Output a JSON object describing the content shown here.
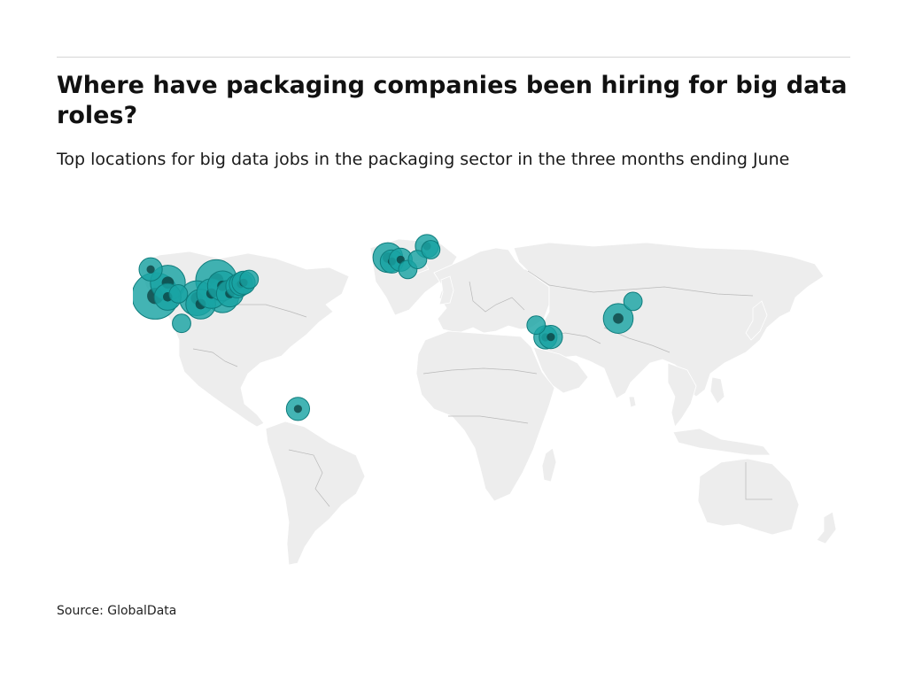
{
  "header": {
    "title": "Where have packaging companies been hiring for big data roles?",
    "subtitle": "Top locations for big data jobs in the packaging sector in the three months ending June"
  },
  "footer": {
    "source": "Source: GlobalData"
  },
  "colors": {
    "land": "#ededed",
    "border": "#b9b9b9",
    "bubble": "#1aa3a3",
    "bubble_stroke": "#0e7c7c",
    "bubble_overlap": "#0b3c3c"
  },
  "chart_data": {
    "type": "scatter",
    "map": "world",
    "series": [
      {
        "values": [
          {
            "lon": -120.5,
            "lat": 47.5,
            "size": 2
          },
          {
            "lon": -118.2,
            "lat": 34.0,
            "size": 12
          },
          {
            "lon": -111.9,
            "lat": 40.7,
            "size": 6
          },
          {
            "lon": -112.0,
            "lat": 33.5,
            "size": 3
          },
          {
            "lon": -106.6,
            "lat": 35.0,
            "size": 1
          },
          {
            "lon": -97.3,
            "lat": 32.8,
            "size": 6
          },
          {
            "lon": -95.4,
            "lat": 29.8,
            "size": 4
          },
          {
            "lon": -90.0,
            "lat": 35.2,
            "size": 4
          },
          {
            "lon": -87.6,
            "lat": 41.9,
            "size": 9
          },
          {
            "lon": -84.4,
            "lat": 33.7,
            "size": 5
          },
          {
            "lon": -84.5,
            "lat": 39.1,
            "size": 4
          },
          {
            "lon": -80.8,
            "lat": 35.2,
            "size": 3
          },
          {
            "lon": -77.0,
            "lat": 38.9,
            "size": 2
          },
          {
            "lon": -75.2,
            "lat": 40.0,
            "size": 2
          },
          {
            "lon": -73.9,
            "lat": 40.7,
            "size": 2
          },
          {
            "lon": -71.1,
            "lat": 42.4,
            "size": 1
          },
          {
            "lon": -105.0,
            "lat": 20.0,
            "size": 1
          },
          {
            "lon": -1.5,
            "lat": 53.5,
            "size": 4
          },
          {
            "lon": 0.5,
            "lat": 51.5,
            "size": 2
          },
          {
            "lon": 4.9,
            "lat": 52.4,
            "size": 2
          },
          {
            "lon": 8.5,
            "lat": 47.4,
            "size": 1
          },
          {
            "lon": 13.4,
            "lat": 52.5,
            "size": 1
          },
          {
            "lon": 18.1,
            "lat": 59.3,
            "size": 2
          },
          {
            "lon": 20.0,
            "lat": 57.5,
            "size": 1
          },
          {
            "lon": 72.9,
            "lat": 19.1,
            "size": 1
          },
          {
            "lon": 77.6,
            "lat": 12.9,
            "size": 2
          },
          {
            "lon": 80.3,
            "lat": 13.1,
            "size": 2
          },
          {
            "lon": 114.1,
            "lat": 22.5,
            "size": 4
          },
          {
            "lon": 121.5,
            "lat": 31.2,
            "size": 1
          },
          {
            "lon": -46.6,
            "lat": -23.5,
            "size": 2
          }
        ]
      }
    ]
  }
}
